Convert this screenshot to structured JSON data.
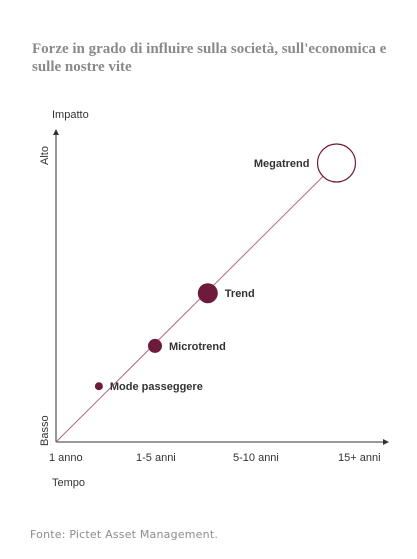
{
  "chart_data": {
    "type": "scatter",
    "title": "Forze in grado di influire sulla società, sull'economica e sulle nostre vite",
    "xlabel": "Tempo",
    "ylabel": "Impatto",
    "y_low_label": "Basso",
    "y_high_label": "Alto",
    "x_ticks": [
      "1 anno",
      "1-5 anni",
      "5-10 anni",
      "15+ anni"
    ],
    "trend_line": true,
    "grid": false,
    "points": [
      {
        "label": "Mode passeggere",
        "x": 0.13,
        "y": 0.18,
        "size": 1,
        "filled": true
      },
      {
        "label": "Microtrend",
        "x": 0.3,
        "y": 0.31,
        "size": 2,
        "filled": true
      },
      {
        "label": "Trend",
        "x": 0.46,
        "y": 0.48,
        "size": 3,
        "filled": true
      },
      {
        "label": "Megatrend",
        "x": 0.85,
        "y": 0.9,
        "size": 5,
        "filled": false
      }
    ]
  },
  "source": "Fonte: Pictet Asset Management.",
  "colors": {
    "accent": "#6e1a3b",
    "line": "#b06a84",
    "axis": "#333333",
    "text": "#333333"
  }
}
